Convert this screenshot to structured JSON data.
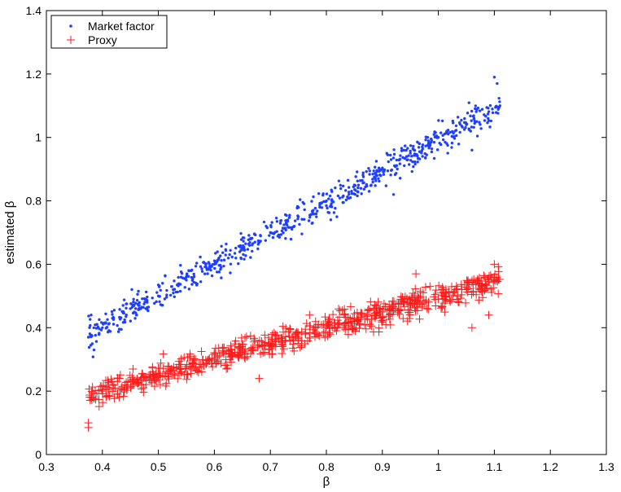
{
  "chart_data": {
    "type": "scatter",
    "title": "",
    "xlabel": "β",
    "ylabel": "estimated β",
    "xlim": [
      0.3,
      1.3
    ],
    "ylim": [
      0,
      1.4
    ],
    "xticks": [
      "0.3",
      "0.4",
      "0.5",
      "0.6",
      "0.7",
      "0.8",
      "0.9",
      "1",
      "1.1",
      "1.2",
      "1.3"
    ],
    "yticks": [
      "0",
      "0.2",
      "0.4",
      "0.6",
      "0.8",
      "1",
      "1.2",
      "1.4"
    ],
    "grid": false,
    "legend_position": "top-left",
    "x_range_of_points": [
      0.375,
      1.11
    ],
    "series": [
      {
        "name": "Market factor",
        "marker": "dot",
        "color": "#1f3fff",
        "trend": {
          "slope": 0.985,
          "intercept": 0.007
        },
        "noise_sd": 0.022,
        "count": 700,
        "points": [
          [
            0.375,
            0.37
          ],
          [
            0.38,
            0.44
          ],
          [
            0.385,
            0.33
          ],
          [
            0.39,
            0.41
          ],
          [
            0.4,
            0.4
          ],
          [
            0.42,
            0.43
          ],
          [
            0.45,
            0.46
          ],
          [
            0.48,
            0.48
          ],
          [
            0.5,
            0.5
          ],
          [
            0.55,
            0.55
          ],
          [
            0.6,
            0.6
          ],
          [
            0.65,
            0.65
          ],
          [
            0.7,
            0.7
          ],
          [
            0.75,
            0.75
          ],
          [
            0.8,
            0.8
          ],
          [
            0.85,
            0.85
          ],
          [
            0.9,
            0.9
          ],
          [
            0.95,
            0.95
          ],
          [
            1.0,
            1.0
          ],
          [
            1.05,
            1.04
          ],
          [
            1.1,
            1.19
          ],
          [
            1.105,
            1.17
          ],
          [
            1.11,
            1.1
          ],
          [
            1.06,
            0.96
          ],
          [
            0.92,
            0.82
          ]
        ]
      },
      {
        "name": "Proxy",
        "marker": "plus",
        "color": "#ff1a1a",
        "trend": {
          "slope": 0.493,
          "intercept": 0.003
        },
        "noise_sd": 0.02,
        "count": 700,
        "points": [
          [
            0.375,
            0.1
          ],
          [
            0.375,
            0.085
          ],
          [
            0.38,
            0.18
          ],
          [
            0.4,
            0.2
          ],
          [
            0.45,
            0.23
          ],
          [
            0.5,
            0.25
          ],
          [
            0.55,
            0.27
          ],
          [
            0.6,
            0.3
          ],
          [
            0.65,
            0.32
          ],
          [
            0.7,
            0.35
          ],
          [
            0.75,
            0.37
          ],
          [
            0.8,
            0.4
          ],
          [
            0.85,
            0.42
          ],
          [
            0.9,
            0.45
          ],
          [
            0.95,
            0.47
          ],
          [
            1.0,
            0.49
          ],
          [
            1.05,
            0.52
          ],
          [
            1.1,
            0.55
          ],
          [
            1.1,
            0.6
          ],
          [
            1.09,
            0.44
          ],
          [
            1.06,
            0.4
          ],
          [
            0.77,
            0.44
          ],
          [
            0.68,
            0.24
          ],
          [
            0.47,
            0.22
          ],
          [
            0.96,
            0.57
          ]
        ]
      }
    ]
  }
}
